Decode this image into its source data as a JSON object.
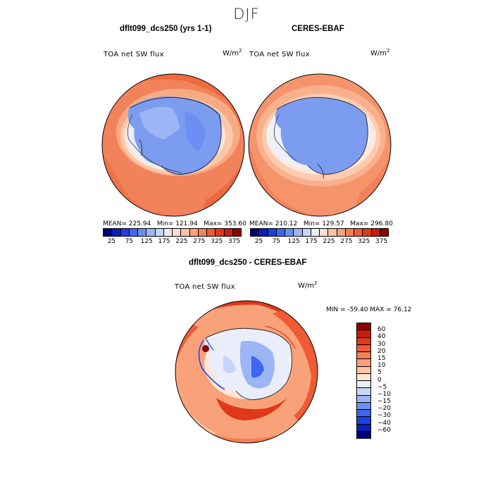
{
  "season": "DJF",
  "panels": {
    "model": {
      "title": "dflt099_dcs250 (yrs 1-1)",
      "field": "TOA net SW flux",
      "units": "W/m",
      "mean": "MEAN= 225.94",
      "min": "Min= 121.94",
      "max": "Max= 353.60"
    },
    "obs": {
      "title": "CERES-EBAF",
      "field": "TOA net SW flux",
      "units": "W/m",
      "mean": "MEAN= 210.12",
      "min": "Min= 129.57",
      "max": "Max= 296.80"
    },
    "diff": {
      "title": "dflt099_dcs250 - CERES-EBAF",
      "field": "TOA net SW flux",
      "units": "W/m",
      "minmax": "MIN = -59.40 MAX = 76.12"
    }
  },
  "colorbar_abs": {
    "labels": [
      "25",
      "75",
      "125",
      "175",
      "225",
      "275",
      "325",
      "375"
    ],
    "colors": [
      "#00007a",
      "#0a1fb8",
      "#1f3fe0",
      "#3f66f0",
      "#6d8ff2",
      "#9cb6f5",
      "#c7d6f7",
      "#eaeefa",
      "#fde0cc",
      "#fcc4a3",
      "#f9a27a",
      "#f57f55",
      "#ef5b34",
      "#e0381a",
      "#c81e0c",
      "#8c0000"
    ]
  },
  "colorbar_diff": {
    "labels": [
      "60",
      "40",
      "30",
      "20",
      "15",
      "10",
      "5",
      "0",
      "−5",
      "−10",
      "−15",
      "−20",
      "−30",
      "−40",
      "−60"
    ],
    "colors": [
      "#8c0000",
      "#c81e0c",
      "#e0381a",
      "#ef5b34",
      "#f57f55",
      "#f9a27a",
      "#fcc4a3",
      "#fde6d6",
      "#eaeefa",
      "#c7d6f7",
      "#9cb6f5",
      "#6d8ff2",
      "#3f66f0",
      "#1f3fe0",
      "#0a1fb8",
      "#00007a"
    ]
  }
}
